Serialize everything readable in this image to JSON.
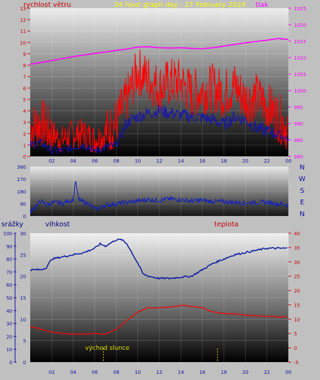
{
  "title": "24 hour graph day : 27 February 2024",
  "colors": {
    "wind": "#ff0000",
    "gust": "#1010c0",
    "pressure": "#ff00ff",
    "dir": "#1020c0",
    "humidity": "#0a1aa0",
    "temperature": "#e01010",
    "rain": "#c0c000",
    "label_red": "#cc0000",
    "label_blue": "#000080",
    "title_yellow": "#ffff00",
    "tick_pink": "#ff00ff"
  },
  "chart_data": [
    {
      "type": "line",
      "title": "24 hour graph day : 27 February 2024",
      "x_ticks": [
        "02",
        "04",
        "06",
        "08",
        "10",
        "12",
        "14",
        "16",
        "18",
        "20",
        "22",
        "00"
      ],
      "left_label": "rychlost větru",
      "right_label": "tlak",
      "ylim_left": [
        0,
        13
      ],
      "yticks_left": [
        "0",
        "1",
        "2",
        "3",
        "4",
        "5",
        "6",
        "7",
        "8",
        "9",
        "10",
        "11",
        "12",
        "13"
      ],
      "ylim_right": [
        980,
        1025
      ],
      "yticks_right": [
        "980",
        "985",
        "990",
        "995",
        "1000",
        "1005",
        "1010",
        "1015",
        "1020",
        "1025"
      ],
      "series": [
        {
          "key": "pressure",
          "axis": "right",
          "x": [
            0,
            1,
            2,
            3,
            4,
            5,
            6,
            7,
            8,
            9,
            10,
            11,
            12,
            13,
            14,
            15,
            16,
            17,
            18,
            19,
            20,
            21,
            22,
            23,
            24
          ],
          "values": [
            1008,
            1008.5,
            1009.1,
            1009.7,
            1010.3,
            1010.8,
            1011.3,
            1011.7,
            1012.2,
            1012.6,
            1013.2,
            1013.3,
            1013.0,
            1012.9,
            1013.0,
            1012.8,
            1012.7,
            1013.0,
            1013.5,
            1014.0,
            1014.5,
            1014.9,
            1015.3,
            1015.8,
            1015.5
          ]
        },
        {
          "key": "wind",
          "axis": "left",
          "x": [
            0,
            1,
            2,
            3,
            4,
            5,
            6,
            7,
            8,
            9,
            10,
            11,
            12,
            13,
            14,
            15,
            16,
            17,
            18,
            19,
            20,
            21,
            22,
            23,
            24
          ],
          "values": [
            2.5,
            3,
            2,
            1.5,
            2,
            2,
            1.5,
            2,
            3,
            5,
            7.5,
            6.8,
            6,
            6.5,
            6.5,
            5.5,
            5.8,
            6,
            5.5,
            6.2,
            5,
            5.2,
            4.5,
            3.5,
            2.5
          ]
        },
        {
          "key": "gust",
          "axis": "left",
          "x": [
            0,
            1,
            2,
            3,
            4,
            5,
            6,
            7,
            8,
            9,
            10,
            11,
            12,
            13,
            14,
            15,
            16,
            17,
            18,
            19,
            20,
            21,
            22,
            23,
            24
          ],
          "values": [
            1,
            1.2,
            0.5,
            0.5,
            0.8,
            1,
            0.5,
            0.8,
            1,
            3,
            3.5,
            3.8,
            4,
            3.8,
            3.6,
            3.5,
            3.4,
            3.2,
            2.8,
            3.5,
            3.2,
            2.5,
            2.2,
            2,
            1.5
          ]
        }
      ]
    },
    {
      "type": "line",
      "x_ticks": [],
      "ylim": [
        0,
        360
      ],
      "yticks": [
        "0",
        "90",
        "180",
        "270",
        "360"
      ],
      "compass": [
        "N",
        "W",
        "S",
        "E",
        "N"
      ],
      "series": [
        {
          "key": "direction",
          "x": [
            0,
            0.5,
            1,
            1.5,
            2,
            2.5,
            3,
            3.5,
            4,
            4.2,
            4.5,
            5,
            5.5,
            6,
            6.5,
            7,
            8,
            9,
            10,
            11,
            12,
            13,
            14,
            15,
            16,
            17,
            18,
            19,
            20,
            21,
            22,
            23,
            24
          ],
          "values": [
            30,
            70,
            110,
            80,
            95,
            100,
            90,
            110,
            120,
            260,
            120,
            100,
            90,
            50,
            60,
            80,
            90,
            100,
            110,
            120,
            115,
            125,
            120,
            110,
            115,
            105,
            105,
            100,
            95,
            100,
            100,
            90,
            80
          ]
        }
      ]
    },
    {
      "type": "line",
      "x_ticks": [
        "02",
        "04",
        "06",
        "08",
        "10",
        "12",
        "14",
        "16",
        "18",
        "20",
        "22",
        "00"
      ],
      "rain_label": "srážky",
      "humidity_label": "vlhkost",
      "temperature_label": "teplota",
      "sunrise_label": "východ slunce",
      "ylim_rain": [
        0,
        100
      ],
      "yticks_rain": [
        "0",
        "10",
        "20",
        "30",
        "40",
        "50",
        "60",
        "70",
        "80",
        "90",
        "100"
      ],
      "ylim_humidity": [
        0,
        30
      ],
      "yticks_humidity": [
        "0",
        "5",
        "10",
        "15",
        "20",
        "25",
        "30"
      ],
      "ylim_temp": [
        -5,
        40
      ],
      "yticks_temp": [
        "-5",
        "0",
        "5",
        "10",
        "15",
        "20",
        "25",
        "30",
        "35",
        "40"
      ],
      "sunrise_hour": 6.8,
      "sunset_hour": 17.4,
      "series": [
        {
          "key": "humidity",
          "axis": "humidity",
          "x": [
            0,
            1,
            1.5,
            2,
            3,
            4,
            5,
            6,
            6.5,
            7,
            8,
            8.5,
            9,
            10,
            10.5,
            11,
            12,
            13,
            14,
            15,
            16,
            17,
            18,
            19,
            20,
            21,
            22,
            23,
            24
          ],
          "values": [
            21.5,
            21.5,
            22,
            24,
            24.5,
            25,
            25.5,
            26.5,
            27.5,
            27,
            28.5,
            28.5,
            27.5,
            23,
            20.5,
            20,
            19.5,
            19.5,
            19.8,
            20,
            21.5,
            23,
            24,
            25,
            25.5,
            26,
            26.5,
            26.5,
            26.5
          ]
        },
        {
          "key": "temperature",
          "axis": "temp",
          "x": [
            0,
            1,
            2,
            3,
            4,
            5,
            6,
            7,
            8,
            9,
            10,
            11,
            12,
            13,
            14,
            15,
            16,
            17,
            18,
            19,
            20,
            21,
            22,
            23,
            24
          ],
          "values": [
            7.5,
            6.5,
            5.5,
            5,
            4.8,
            4.8,
            5,
            4.8,
            6.5,
            9.5,
            12.5,
            14,
            14,
            14.2,
            14.8,
            14.5,
            14,
            12.5,
            12,
            11.8,
            11.5,
            11.2,
            11,
            10.8,
            10.8
          ]
        }
      ]
    }
  ]
}
